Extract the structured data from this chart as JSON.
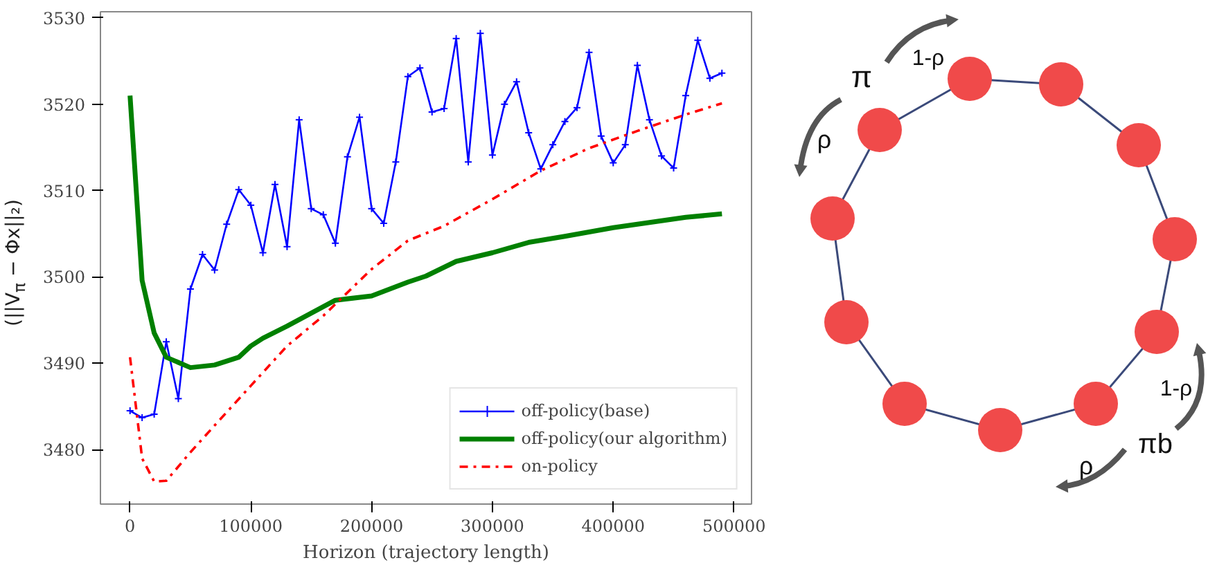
{
  "chart_data": {
    "type": "line",
    "xlabel": "Horizon (trajectory length)",
    "ylabel": "(||V$_{π}$ − Φx||₂)",
    "xlim": [
      -24500,
      514500
    ],
    "ylim": [
      3473.7,
      3530.7
    ],
    "xticks": [
      0,
      100000,
      200000,
      300000,
      400000,
      500000
    ],
    "yticks": [
      3480,
      3490,
      3500,
      3510,
      3520,
      3530
    ],
    "grid": false,
    "legend": "bottom right",
    "series": [
      {
        "name": "off-policy(base)",
        "color": "#0000ff",
        "marker": "cross",
        "line_style": "solid",
        "x": [
          0,
          10000,
          20000,
          30000,
          40000,
          50000,
          60000,
          70000,
          80000,
          90000,
          100000,
          110000,
          120000,
          130000,
          140000,
          150000,
          160000,
          170000,
          180000,
          190000,
          200000,
          210000,
          220000,
          230000,
          240000,
          250000,
          260000,
          270000,
          280000,
          290000,
          300000,
          310000,
          320000,
          330000,
          340000,
          350000,
          360000,
          370000,
          380000,
          390000,
          400000,
          410000,
          420000,
          430000,
          440000,
          450000,
          460000,
          470000,
          480000,
          490000
        ],
        "values": [
          3484.5,
          3483.7,
          3484.1,
          3492.5,
          3485.9,
          3498.6,
          3502.6,
          3500.8,
          3506.1,
          3510.1,
          3508.3,
          3502.8,
          3510.7,
          3503.5,
          3518.2,
          3507.9,
          3507.2,
          3503.9,
          3513.9,
          3518.5,
          3507.9,
          3506.2,
          3513.3,
          3523.2,
          3524.2,
          3519.1,
          3519.5,
          3527.6,
          3513.3,
          3528.2,
          3514.1,
          3520.0,
          3522.6,
          3516.7,
          3512.5,
          3515.3,
          3518.0,
          3519.6,
          3526.0,
          3516.3,
          3513.2,
          3515.3,
          3524.5,
          3518.2,
          3514.0,
          3512.6,
          3521.0,
          3527.4,
          3523.0,
          3523.6
        ]
      },
      {
        "name": "off-policy(our algorithm)",
        "color": "#008000",
        "marker": "none",
        "line_style": "solid",
        "x": [
          0,
          10000,
          20000,
          30000,
          50000,
          70000,
          90000,
          100000,
          110000,
          130000,
          150000,
          170000,
          200000,
          230000,
          245000,
          270000,
          300000,
          330000,
          360000,
          400000,
          430000,
          460000,
          490000
        ],
        "values": [
          3521.0,
          3499.6,
          3493.5,
          3490.7,
          3489.5,
          3489.8,
          3490.7,
          3492.0,
          3492.9,
          3494.3,
          3495.8,
          3497.3,
          3497.8,
          3499.4,
          3500.1,
          3501.8,
          3502.8,
          3504.0,
          3504.7,
          3505.7,
          3506.3,
          3506.9,
          3507.3
        ]
      },
      {
        "name": "on-policy",
        "color": "#ff0000",
        "marker": "none",
        "line_style": "dashdot",
        "x": [
          0,
          10000,
          20000,
          30000,
          50000,
          70000,
          100000,
          130000,
          160000,
          200000,
          230000,
          260000,
          300000,
          340000,
          380000,
          420000,
          460000,
          490000
        ],
        "values": [
          3490.7,
          3479.0,
          3476.3,
          3476.4,
          3479.7,
          3482.8,
          3487.4,
          3492.0,
          3495.5,
          3500.9,
          3504.2,
          3505.9,
          3509.0,
          3512.3,
          3514.9,
          3516.9,
          3518.8,
          3520.1
        ]
      }
    ],
    "annotations": [
      "π",
      "1-ρ",
      "ρ",
      "1-ρ",
      "πb",
      "ρ"
    ]
  }
}
